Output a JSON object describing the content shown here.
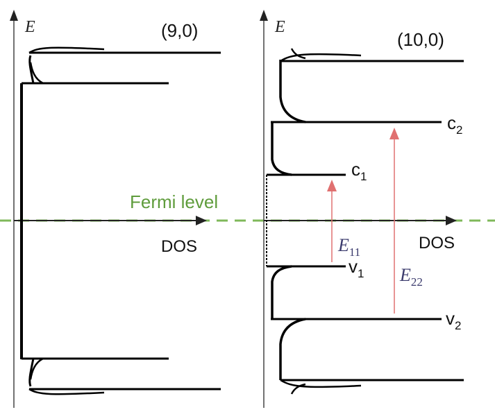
{
  "left_panel": {
    "axis_label": "E",
    "title": "(9,0)",
    "dos_label": "DOS"
  },
  "right_panel": {
    "axis_label": "E",
    "title": "(10,0)",
    "dos_label": "DOS",
    "levels": {
      "c2": {
        "letter": "c",
        "sub": "2"
      },
      "c1": {
        "letter": "c",
        "sub": "1"
      },
      "v1": {
        "letter": "v",
        "sub": "1"
      },
      "v2": {
        "letter": "v",
        "sub": "2"
      }
    },
    "transitions": {
      "e11": {
        "letter": "E",
        "sub": "11"
      },
      "e22": {
        "letter": "E",
        "sub": "22"
      }
    }
  },
  "fermi_label": "Fermi level",
  "colors": {
    "curve": "#000000",
    "fermi": "#7fb85a",
    "fermi_text": "#5f9c3c",
    "arrow": "#e07070",
    "transition_text": "#3b3b6d"
  }
}
